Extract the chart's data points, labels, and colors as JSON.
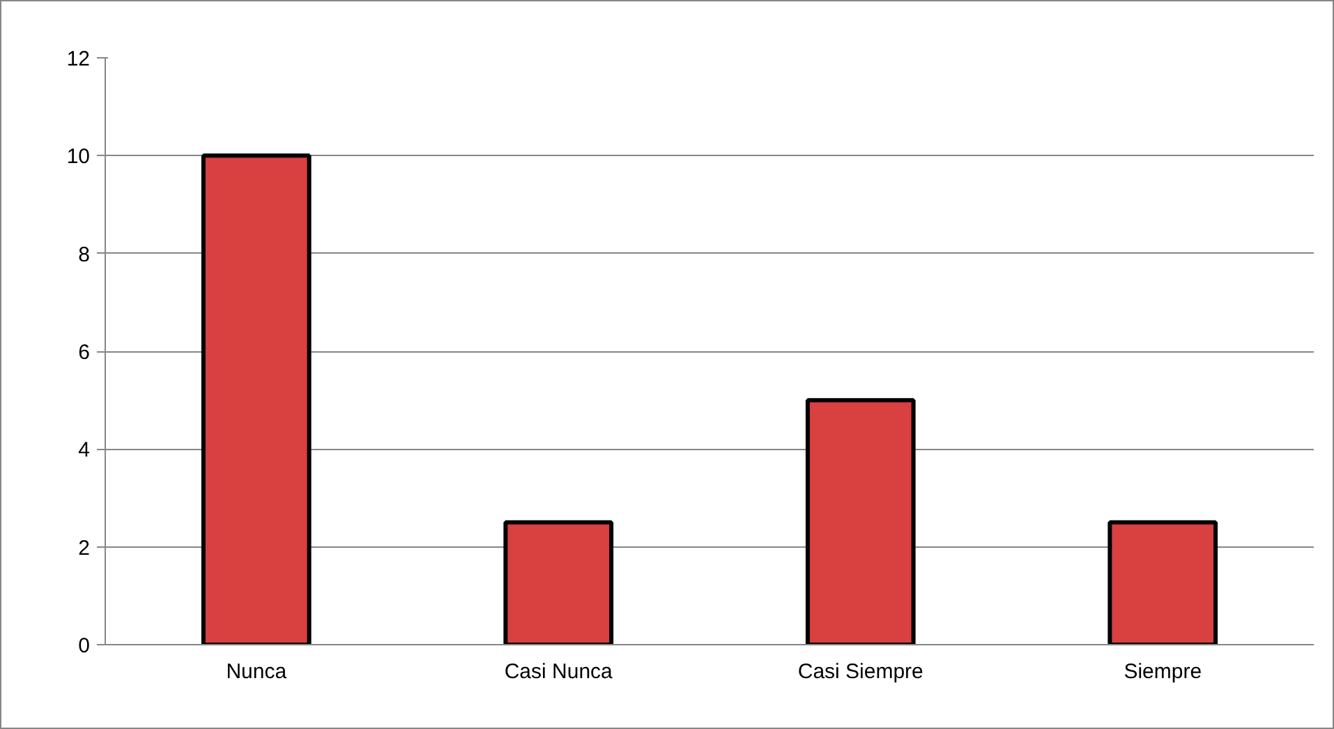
{
  "chart_data": {
    "type": "bar",
    "categories": [
      "Nunca",
      "Casi Nunca",
      "Casi Siempre",
      "Siempre"
    ],
    "values": [
      10,
      2.5,
      5,
      2.5
    ],
    "color": "#d94040",
    "ylim": [
      0,
      12
    ],
    "yticks": [
      0,
      2,
      4,
      6,
      8,
      10,
      12
    ],
    "grid": "y"
  }
}
